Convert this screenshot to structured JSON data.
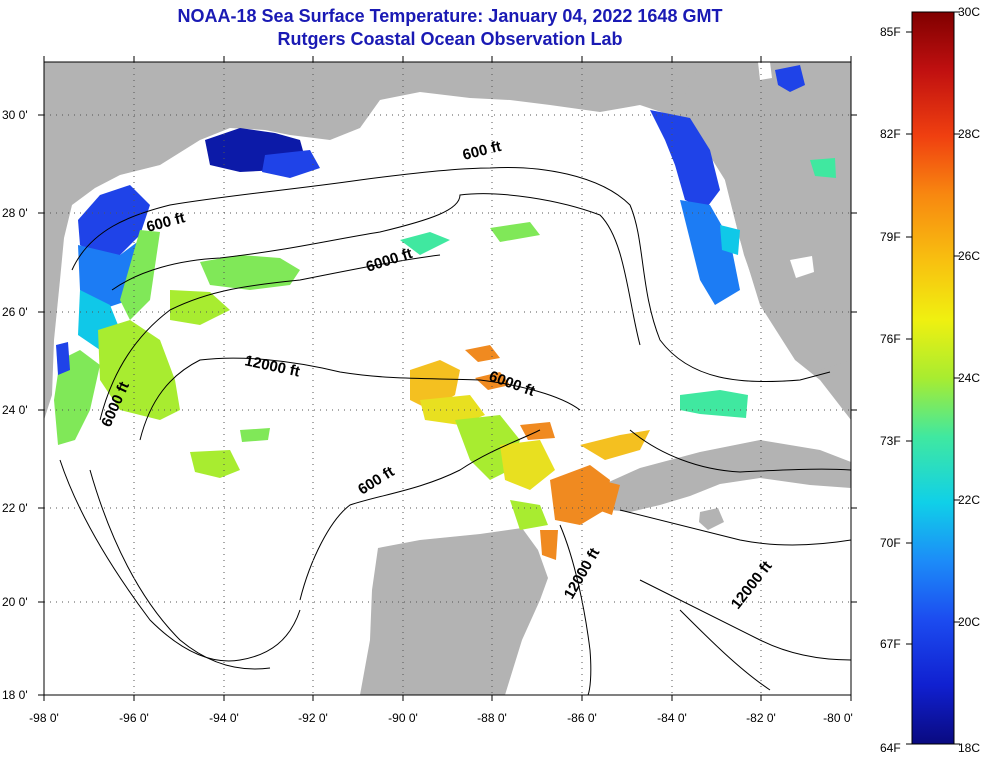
{
  "title": {
    "line1": "NOAA-18 Sea Surface Temperature:  January 04, 2022 1648 GMT",
    "line2": "Rutgers Coastal Ocean Observation Lab"
  },
  "map": {
    "region": "Gulf of Mexico",
    "lat_labels": [
      "30 0'",
      "28 0'",
      "26 0'",
      "24 0'",
      "22 0'",
      "20 0'",
      "18 0'"
    ],
    "lon_labels": [
      "-98 0'",
      "-96 0'",
      "-94 0'",
      "-92 0'",
      "-90 0'",
      "-88 0'",
      "-86 0'",
      "-84 0'",
      "-82 0'",
      "-80 0'"
    ],
    "contour_labels": [
      "600 ft",
      "6000 ft",
      "600 ft",
      "12000 ft",
      "6000 ft",
      "6000 ft",
      "600 ft",
      "12000 ft",
      "12000 ft"
    ]
  },
  "colorbar": {
    "fahrenheit_labels": [
      "85F",
      "82F",
      "79F",
      "76F",
      "73F",
      "70F",
      "67F",
      "64F"
    ],
    "celsius_labels": [
      "30C",
      "28C",
      "26C",
      "24C",
      "22C",
      "20C",
      "18C"
    ],
    "colors": {
      "c18": "#0a0a80",
      "c19": "#1020d0",
      "c20": "#1c4cf0",
      "c21": "#1c8cf8",
      "c22": "#10d0e8",
      "c23": "#40e8a0",
      "c24": "#a8ec30",
      "c25": "#f0f010",
      "c26": "#f8c010",
      "c27": "#f88810",
      "c28": "#f04010",
      "c29": "#c01010",
      "c30": "#800000"
    }
  },
  "colors": {
    "title": "#1a1ab4",
    "land": "#b3b3b3",
    "ocean_cloud": "#ffffff"
  }
}
